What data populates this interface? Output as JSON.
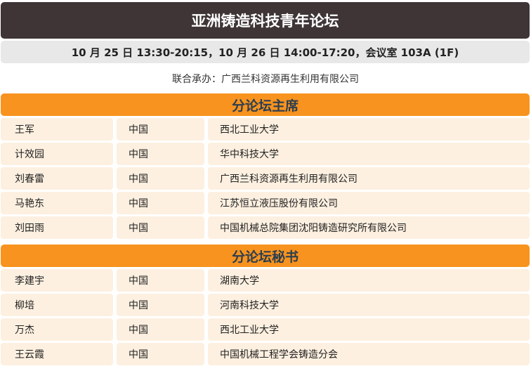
{
  "title": "亚洲铸造科技青年论坛",
  "schedule": "10 月 25 日 13:30-20:15，10 月 26 日 14:00-17:20，会议室 103A (1F)",
  "sponsor": "联合承办：广西兰科资源再生利用有限公司",
  "colors": {
    "title_bg": "#3f3536",
    "section_bg": "#f7931e",
    "section_text": "#2c3e50",
    "row_bg": "#fdf0e0",
    "date_bg": "#e8e8e8"
  },
  "sections": [
    {
      "heading": "分论坛主席",
      "rows": [
        [
          "王军",
          "中国",
          "西北工业大学"
        ],
        [
          "计效园",
          "中国",
          "华中科技大学"
        ],
        [
          "刘春雷",
          "中国",
          "广西兰科资源再生利用有限公司"
        ],
        [
          "马艳东",
          "中国",
          "江苏恒立液压股份有限公司"
        ],
        [
          "刘田雨",
          "中国",
          "中国机械总院集团沈阳铸造研究所有限公司"
        ]
      ]
    },
    {
      "heading": "分论坛秘书",
      "rows": [
        [
          "李建宇",
          "中国",
          "湖南大学"
        ],
        [
          "柳培",
          "中国",
          "河南科技大学"
        ],
        [
          "万杰",
          "中国",
          "西北工业大学"
        ],
        [
          "王云霞",
          "中国",
          "中国机械工程学会铸造分会"
        ]
      ]
    }
  ]
}
